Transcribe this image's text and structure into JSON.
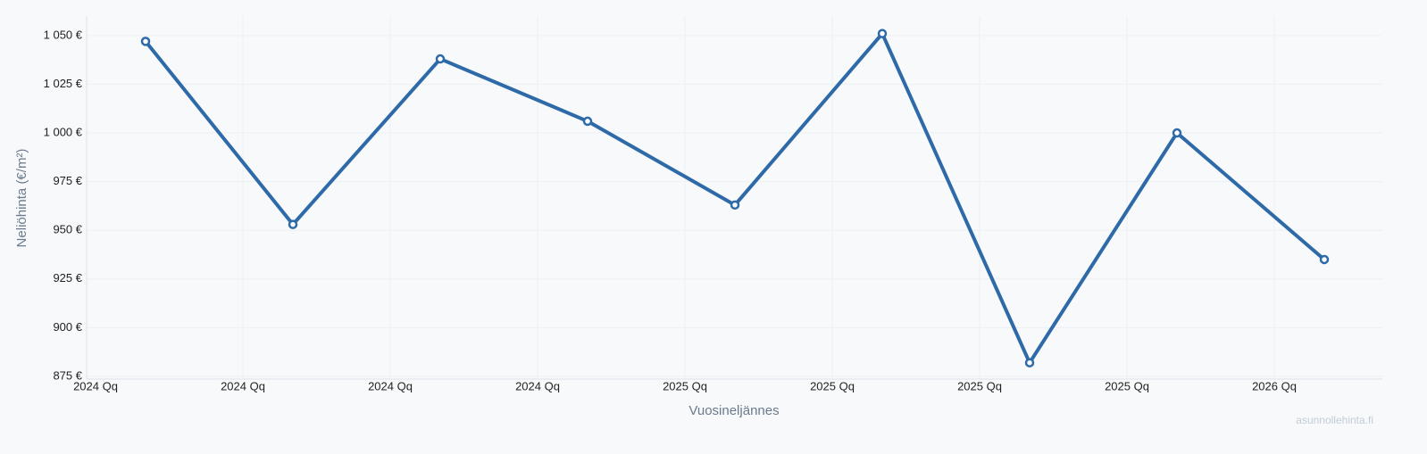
{
  "chart_data": {
    "type": "line",
    "y_label": "Neliöhinta (€/m²)",
    "x_label": "Vuosineljännes",
    "watermark": "asunnollehinta.fi",
    "categories": [
      "2024 Qq",
      "2024 Qq",
      "2024 Qq",
      "2024 Qq",
      "2025 Qq",
      "2025 Qq",
      "2025 Qq",
      "2025 Qq",
      "2026 Qq"
    ],
    "series": [
      {
        "color": "#2f6aa8",
        "values": [
          1047,
          953,
          1038,
          1006,
          963,
          1051,
          882,
          1000,
          935
        ]
      }
    ],
    "ylim": [
      875,
      1060
    ],
    "yticks": [
      {
        "value": 875,
        "label": "875 €"
      },
      {
        "value": 900,
        "label": "900 €"
      },
      {
        "value": 925,
        "label": "925 €"
      },
      {
        "value": 950,
        "label": "950 €"
      },
      {
        "value": 975,
        "label": "975 €"
      },
      {
        "value": 1000,
        "label": "1 000 €"
      },
      {
        "value": 1025,
        "label": "1 025 €"
      },
      {
        "value": 1050,
        "label": "1 050 €"
      }
    ],
    "grid": true
  }
}
